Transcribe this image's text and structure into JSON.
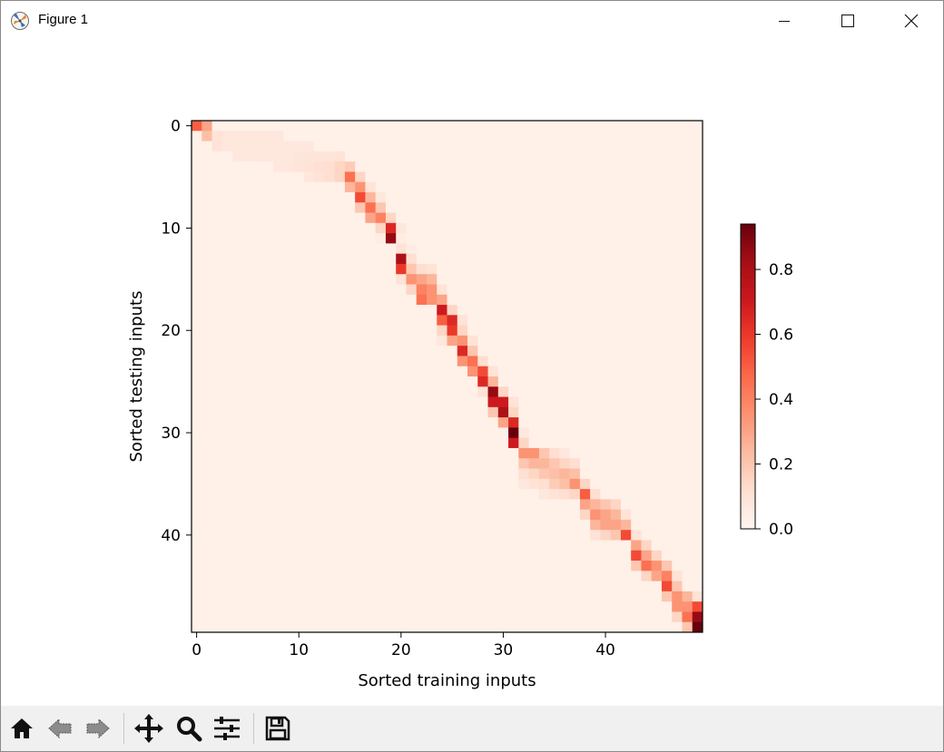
{
  "window": {
    "title": "Figure 1",
    "controls": [
      "minimize",
      "maximize",
      "close"
    ]
  },
  "toolbar": {
    "buttons": [
      {
        "name": "home-button",
        "icon": "home-icon"
      },
      {
        "name": "back-button",
        "icon": "back-arrow-icon"
      },
      {
        "name": "forward-button",
        "icon": "forward-arrow-icon"
      },
      {
        "name": "pan-button",
        "icon": "move-icon"
      },
      {
        "name": "zoom-button",
        "icon": "magnifier-icon"
      },
      {
        "name": "configure-subplots-button",
        "icon": "sliders-icon"
      },
      {
        "name": "save-button",
        "icon": "floppy-disk-icon"
      }
    ]
  },
  "chart_data": {
    "type": "heatmap",
    "colormap": "Reds",
    "title": "",
    "xlabel": "Sorted training inputs",
    "ylabel": "Sorted testing inputs",
    "n_rows": 50,
    "n_cols": 50,
    "xticks": [
      0,
      10,
      20,
      30,
      40
    ],
    "yticks": [
      0,
      10,
      20,
      30,
      40
    ],
    "colorbar": {
      "ticks": [
        0.0,
        0.2,
        0.4,
        0.6,
        0.8
      ],
      "tick_labels": [
        "0.0",
        "0.2",
        "0.4",
        "0.6",
        "0.8"
      ],
      "min": 0.0,
      "max": 0.94
    },
    "background_value": 0.03,
    "rows": [
      {
        "row": 0,
        "peaks": [
          [
            0,
            0.5
          ],
          [
            1,
            0.3
          ]
        ]
      },
      {
        "row": 1,
        "peaks": [
          [
            1,
            0.22
          ],
          [
            2,
            0.1
          ],
          [
            3,
            0.08
          ],
          [
            4,
            0.08
          ],
          [
            5,
            0.08
          ],
          [
            6,
            0.08
          ],
          [
            7,
            0.07
          ],
          [
            8,
            0.07
          ]
        ]
      },
      {
        "row": 2,
        "peaks": [
          [
            2,
            0.1
          ],
          [
            3,
            0.08
          ],
          [
            4,
            0.08
          ],
          [
            5,
            0.08
          ],
          [
            6,
            0.08
          ],
          [
            7,
            0.08
          ],
          [
            8,
            0.08
          ],
          [
            9,
            0.08
          ],
          [
            10,
            0.07
          ],
          [
            11,
            0.07
          ]
        ]
      },
      {
        "row": 3,
        "peaks": [
          [
            4,
            0.07
          ],
          [
            5,
            0.07
          ],
          [
            6,
            0.08
          ],
          [
            7,
            0.08
          ],
          [
            8,
            0.08
          ],
          [
            9,
            0.08
          ],
          [
            10,
            0.09
          ],
          [
            11,
            0.09
          ],
          [
            12,
            0.09
          ],
          [
            13,
            0.09
          ],
          [
            14,
            0.1
          ]
        ]
      },
      {
        "row": 4,
        "peaks": [
          [
            8,
            0.07
          ],
          [
            9,
            0.08
          ],
          [
            10,
            0.09
          ],
          [
            11,
            0.1
          ],
          [
            12,
            0.11
          ],
          [
            13,
            0.12
          ],
          [
            14,
            0.15
          ],
          [
            15,
            0.18
          ]
        ]
      },
      {
        "row": 5,
        "peaks": [
          [
            11,
            0.08
          ],
          [
            12,
            0.1
          ],
          [
            13,
            0.12
          ],
          [
            14,
            0.15
          ],
          [
            15,
            0.45
          ],
          [
            16,
            0.15
          ]
        ]
      },
      {
        "row": 6,
        "peaks": [
          [
            15,
            0.25
          ],
          [
            16,
            0.35
          ],
          [
            17,
            0.1
          ]
        ]
      },
      {
        "row": 7,
        "peaks": [
          [
            16,
            0.55
          ],
          [
            17,
            0.25
          ],
          [
            18,
            0.08
          ]
        ]
      },
      {
        "row": 8,
        "peaks": [
          [
            16,
            0.2
          ],
          [
            17,
            0.45
          ],
          [
            18,
            0.2
          ]
        ]
      },
      {
        "row": 9,
        "peaks": [
          [
            17,
            0.3
          ],
          [
            18,
            0.4
          ],
          [
            19,
            0.15
          ]
        ]
      },
      {
        "row": 10,
        "peaks": [
          [
            18,
            0.15
          ],
          [
            19,
            0.65
          ],
          [
            20,
            0.08
          ]
        ]
      },
      {
        "row": 11,
        "peaks": [
          [
            18,
            0.05
          ],
          [
            19,
            0.85
          ],
          [
            20,
            0.05
          ]
        ]
      },
      {
        "row": 12,
        "peaks": [
          [
            20,
            0.1
          ],
          [
            21,
            0.05
          ]
        ]
      },
      {
        "row": 13,
        "peaks": [
          [
            20,
            0.8
          ],
          [
            21,
            0.12
          ]
        ]
      },
      {
        "row": 14,
        "peaks": [
          [
            20,
            0.6
          ],
          [
            21,
            0.2
          ],
          [
            22,
            0.12
          ],
          [
            23,
            0.1
          ]
        ]
      },
      {
        "row": 15,
        "peaks": [
          [
            20,
            0.1
          ],
          [
            21,
            0.35
          ],
          [
            22,
            0.3
          ],
          [
            23,
            0.25
          ]
        ]
      },
      {
        "row": 16,
        "peaks": [
          [
            21,
            0.15
          ],
          [
            22,
            0.4
          ],
          [
            23,
            0.35
          ],
          [
            24,
            0.1
          ]
        ]
      },
      {
        "row": 17,
        "peaks": [
          [
            22,
            0.45
          ],
          [
            23,
            0.35
          ],
          [
            24,
            0.3
          ]
        ]
      },
      {
        "row": 18,
        "peaks": [
          [
            24,
            0.7
          ],
          [
            25,
            0.15
          ]
        ]
      },
      {
        "row": 19,
        "peaks": [
          [
            24,
            0.5
          ],
          [
            25,
            0.65
          ],
          [
            26,
            0.1
          ]
        ]
      },
      {
        "row": 20,
        "peaks": [
          [
            24,
            0.15
          ],
          [
            25,
            0.6
          ],
          [
            26,
            0.15
          ]
        ]
      },
      {
        "row": 21,
        "peaks": [
          [
            24,
            0.08
          ],
          [
            25,
            0.3
          ],
          [
            26,
            0.35
          ],
          [
            27,
            0.1
          ]
        ]
      },
      {
        "row": 22,
        "peaks": [
          [
            26,
            0.65
          ],
          [
            27,
            0.2
          ]
        ]
      },
      {
        "row": 23,
        "peaks": [
          [
            26,
            0.35
          ],
          [
            27,
            0.45
          ],
          [
            28,
            0.12
          ]
        ]
      },
      {
        "row": 24,
        "peaks": [
          [
            27,
            0.35
          ],
          [
            28,
            0.55
          ],
          [
            29,
            0.1
          ]
        ]
      },
      {
        "row": 25,
        "peaks": [
          [
            28,
            0.65
          ],
          [
            29,
            0.25
          ]
        ]
      },
      {
        "row": 26,
        "peaks": [
          [
            28,
            0.1
          ],
          [
            29,
            0.85
          ],
          [
            30,
            0.15
          ]
        ]
      },
      {
        "row": 27,
        "peaks": [
          [
            29,
            0.7
          ],
          [
            30,
            0.7
          ],
          [
            31,
            0.1
          ]
        ]
      },
      {
        "row": 28,
        "peaks": [
          [
            29,
            0.2
          ],
          [
            30,
            0.8
          ],
          [
            31,
            0.15
          ]
        ]
      },
      {
        "row": 29,
        "peaks": [
          [
            30,
            0.3
          ],
          [
            31,
            0.65
          ]
        ]
      },
      {
        "row": 30,
        "peaks": [
          [
            31,
            0.94
          ],
          [
            32,
            0.08
          ]
        ]
      },
      {
        "row": 31,
        "peaks": [
          [
            31,
            0.7
          ],
          [
            32,
            0.15
          ]
        ]
      },
      {
        "row": 32,
        "peaks": [
          [
            32,
            0.35
          ],
          [
            33,
            0.35
          ],
          [
            34,
            0.2
          ],
          [
            35,
            0.12
          ],
          [
            36,
            0.08
          ]
        ]
      },
      {
        "row": 33,
        "peaks": [
          [
            32,
            0.2
          ],
          [
            33,
            0.25
          ],
          [
            34,
            0.25
          ],
          [
            35,
            0.2
          ],
          [
            36,
            0.15
          ],
          [
            37,
            0.12
          ]
        ]
      },
      {
        "row": 34,
        "peaks": [
          [
            32,
            0.12
          ],
          [
            33,
            0.15
          ],
          [
            34,
            0.2
          ],
          [
            35,
            0.22
          ],
          [
            36,
            0.25
          ],
          [
            37,
            0.22
          ]
        ]
      },
      {
        "row": 35,
        "peaks": [
          [
            32,
            0.08
          ],
          [
            33,
            0.1
          ],
          [
            34,
            0.12
          ],
          [
            35,
            0.18
          ],
          [
            36,
            0.22
          ],
          [
            37,
            0.35
          ],
          [
            38,
            0.15
          ]
        ]
      },
      {
        "row": 36,
        "peaks": [
          [
            34,
            0.08
          ],
          [
            35,
            0.1
          ],
          [
            36,
            0.12
          ],
          [
            37,
            0.15
          ],
          [
            38,
            0.5
          ],
          [
            39,
            0.12
          ]
        ]
      },
      {
        "row": 37,
        "peaks": [
          [
            38,
            0.3
          ],
          [
            39,
            0.25
          ],
          [
            40,
            0.2
          ],
          [
            41,
            0.15
          ]
        ]
      },
      {
        "row": 38,
        "peaks": [
          [
            38,
            0.15
          ],
          [
            39,
            0.35
          ],
          [
            40,
            0.3
          ],
          [
            41,
            0.25
          ],
          [
            42,
            0.1
          ]
        ]
      },
      {
        "row": 39,
        "peaks": [
          [
            39,
            0.25
          ],
          [
            40,
            0.3
          ],
          [
            41,
            0.3
          ],
          [
            42,
            0.25
          ]
        ]
      },
      {
        "row": 40,
        "peaks": [
          [
            39,
            0.1
          ],
          [
            40,
            0.15
          ],
          [
            41,
            0.2
          ],
          [
            42,
            0.55
          ],
          [
            43,
            0.1
          ]
        ]
      },
      {
        "row": 41,
        "peaks": [
          [
            43,
            0.3
          ],
          [
            44,
            0.15
          ]
        ]
      },
      {
        "row": 42,
        "peaks": [
          [
            43,
            0.55
          ],
          [
            44,
            0.3
          ],
          [
            45,
            0.15
          ]
        ]
      },
      {
        "row": 43,
        "peaks": [
          [
            43,
            0.2
          ],
          [
            44,
            0.45
          ],
          [
            45,
            0.35
          ],
          [
            46,
            0.2
          ]
        ]
      },
      {
        "row": 44,
        "peaks": [
          [
            44,
            0.15
          ],
          [
            45,
            0.3
          ],
          [
            46,
            0.4
          ],
          [
            47,
            0.1
          ]
        ]
      },
      {
        "row": 45,
        "peaks": [
          [
            46,
            0.55
          ],
          [
            47,
            0.2
          ]
        ]
      },
      {
        "row": 46,
        "peaks": [
          [
            46,
            0.2
          ],
          [
            47,
            0.35
          ],
          [
            48,
            0.25
          ],
          [
            49,
            0.1
          ]
        ]
      },
      {
        "row": 47,
        "peaks": [
          [
            47,
            0.35
          ],
          [
            48,
            0.35
          ],
          [
            49,
            0.55
          ]
        ]
      },
      {
        "row": 48,
        "peaks": [
          [
            47,
            0.15
          ],
          [
            48,
            0.45
          ],
          [
            49,
            0.85
          ]
        ]
      },
      {
        "row": 49,
        "peaks": [
          [
            48,
            0.2
          ],
          [
            49,
            0.94
          ]
        ]
      }
    ]
  }
}
